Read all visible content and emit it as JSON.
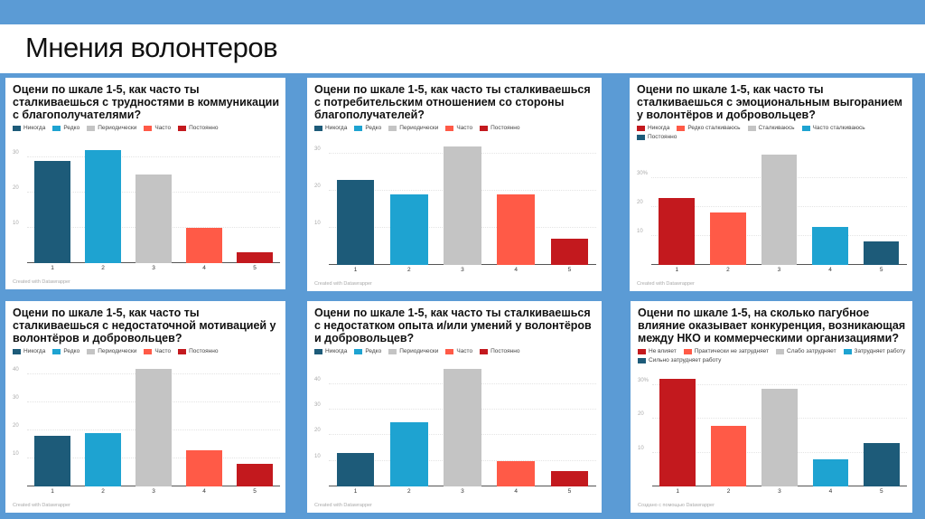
{
  "slide": {
    "title": "Мнения волонтеров",
    "background_color": "#5b9bd5"
  },
  "chart_data": [
    {
      "type": "bar",
      "title": "Оцени по шкале 1-5, как часто ты сталкиваешься с трудностями в коммуникации с благополучателями?",
      "legend": [
        "Никогда",
        "Редко",
        "Периодически",
        "Часто",
        "Постоянно"
      ],
      "colors": [
        "#1d5b79",
        "#1ea3d1",
        "#c4c4c4",
        "#ff5a47",
        "#c3191e"
      ],
      "categories": [
        "1",
        "2",
        "3",
        "4",
        "5"
      ],
      "values": [
        29,
        32,
        25,
        10,
        3
      ],
      "yticks": [
        "10",
        "20",
        "30"
      ],
      "ytick_values": [
        10,
        20,
        30
      ],
      "ylim": [
        0,
        34
      ],
      "grid": true,
      "legend_position": "top-left",
      "footer": "Created with Datawrapper"
    },
    {
      "type": "bar",
      "title": "Оцени по шкале 1-5, как часто ты сталкиваешься с потребительским отношением со стороны благополучателей?",
      "legend": [
        "Никогда",
        "Редко",
        "Периодически",
        "Часто",
        "Постоянно"
      ],
      "colors": [
        "#1d5b79",
        "#1ea3d1",
        "#c4c4c4",
        "#ff5a47",
        "#c3191e"
      ],
      "categories": [
        "1",
        "2",
        "3",
        "4",
        "5"
      ],
      "values": [
        23,
        19,
        32,
        19,
        7
      ],
      "yticks": [
        "10",
        "20",
        "30"
      ],
      "ytick_values": [
        10,
        20,
        30
      ],
      "ylim": [
        0,
        33
      ],
      "grid": true,
      "legend_position": "top-left",
      "footer": "Created with Datawrapper"
    },
    {
      "type": "bar",
      "title": "Оцени по шкале 1-5, как часто ты сталкиваешься с эмоциональным выгоранием у волонтёров и добровольцев?",
      "legend": [
        "Никогда",
        "Редко сталкиваюсь",
        "Сталкиваюсь",
        "Часто сталкиваюсь",
        "Постоянно"
      ],
      "colors": [
        "#c3191e",
        "#ff5a47",
        "#c4c4c4",
        "#1ea3d1",
        "#1d5b79"
      ],
      "categories": [
        "1",
        "2",
        "3",
        "4",
        "5"
      ],
      "values": [
        23,
        18,
        38,
        13,
        8
      ],
      "yticks": [
        "10",
        "20",
        "30%"
      ],
      "ytick_values": [
        10,
        20,
        30
      ],
      "ylim": [
        0,
        39
      ],
      "grid": true,
      "legend_position": "top-left",
      "footer": "Created with Datawrapper"
    },
    {
      "type": "bar",
      "title": "Оцени по шкале 1-5, как часто ты сталкиваешься с недостаточной мотивацией у волонтёров и добровольцев?",
      "legend": [
        "Никогда",
        "Редко",
        "Периодически",
        "Часто",
        "Постоянно"
      ],
      "colors": [
        "#1d5b79",
        "#1ea3d1",
        "#c4c4c4",
        "#ff5a47",
        "#c3191e"
      ],
      "categories": [
        "1",
        "2",
        "3",
        "4",
        "5"
      ],
      "values": [
        18,
        19,
        42,
        13,
        8
      ],
      "yticks": [
        "10",
        "20",
        "30",
        "40"
      ],
      "ytick_values": [
        10,
        20,
        30,
        40
      ],
      "ylim": [
        0,
        43
      ],
      "grid": true,
      "legend_position": "top-left",
      "footer": "Created with Datawrapper"
    },
    {
      "type": "bar",
      "title": "Оцени по шкале 1-5, как часто ты сталкиваешься с недостатком опыта и/или умений у волонтёров и добровольцев?",
      "legend": [
        "Никогда",
        "Редко",
        "Периодически",
        "Часто",
        "Постоянно"
      ],
      "colors": [
        "#1d5b79",
        "#1ea3d1",
        "#c4c4c4",
        "#ff5a47",
        "#c3191e"
      ],
      "categories": [
        "1",
        "2",
        "3",
        "4",
        "5"
      ],
      "values": [
        13,
        25,
        46,
        10,
        6
      ],
      "yticks": [
        "10",
        "20",
        "30",
        "40"
      ],
      "ytick_values": [
        10,
        20,
        30,
        40
      ],
      "ylim": [
        0,
        47
      ],
      "grid": true,
      "legend_position": "top-left",
      "footer": "Created with Datawrapper"
    },
    {
      "type": "bar",
      "title": "Оцени по шкале 1-5, на сколько пагубное влияние оказывает конкуренция, возникающая между НКО и коммерческими организациями?",
      "legend": [
        "Не влияет",
        "Практически не затрудняет",
        "Слабо затрудняет",
        "Затрудняет работу",
        "Сильно затрудняет работу"
      ],
      "colors": [
        "#c3191e",
        "#ff5a47",
        "#c4c4c4",
        "#1ea3d1",
        "#1d5b79"
      ],
      "categories": [
        "1",
        "2",
        "3",
        "4",
        "5"
      ],
      "values": [
        32,
        18,
        29,
        8,
        13
      ],
      "yticks": [
        "10",
        "20",
        "30%"
      ],
      "ytick_values": [
        10,
        20,
        30
      ],
      "ylim": [
        0,
        33
      ],
      "grid": true,
      "legend_position": "top-left",
      "footer": "Создано с помощью Datawrapper"
    }
  ]
}
